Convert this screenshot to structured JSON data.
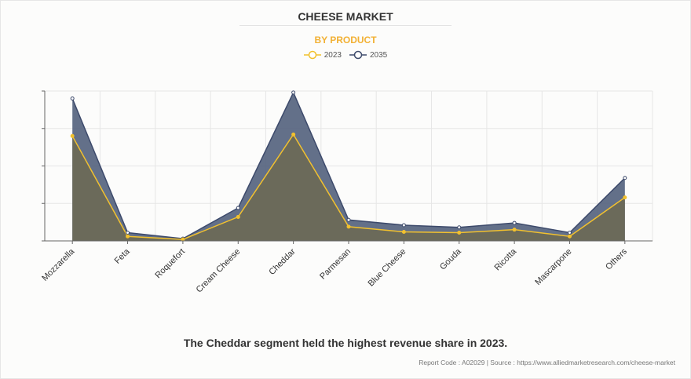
{
  "header": {
    "title": "CHEESE MARKET",
    "subtitle": "BY PRODUCT"
  },
  "colors": {
    "s2023": "#f2c12e",
    "s2035": "#3d4a6b",
    "area2035": "#56647f",
    "area2023": "#6b6a5a",
    "grid": "#e6e6e6",
    "axis": "#666666"
  },
  "chart_data": {
    "type": "area",
    "title": "CHEESE MARKET",
    "subtitle": "BY PRODUCT",
    "xlabel": "",
    "ylabel": "",
    "ylim": [
      0,
      100
    ],
    "yticks_labeled": false,
    "grid": true,
    "legend": "top-center",
    "categories": [
      "Mozzarella",
      "Feta",
      "Roquefort",
      "Cream Cheese",
      "Cheddar",
      "Parmesan",
      "Blue Cheese",
      "Gouda",
      "Ricotta",
      "Mascarpone",
      "Others"
    ],
    "series": [
      {
        "name": "2023",
        "values": [
          70,
          3,
          1,
          16,
          71,
          9.5,
          6,
          5.5,
          7.5,
          3,
          29
        ]
      },
      {
        "name": "2035",
        "values": [
          95,
          5.5,
          1.5,
          22,
          99,
          14,
          10.5,
          9,
          12,
          5.5,
          42
        ]
      }
    ]
  },
  "footer": {
    "caption": "The Cheddar segment held the highest revenue share in 2023.",
    "source": "Report Code : A02029  |  Source : https://www.alliedmarketresearch.com/cheese-market"
  }
}
